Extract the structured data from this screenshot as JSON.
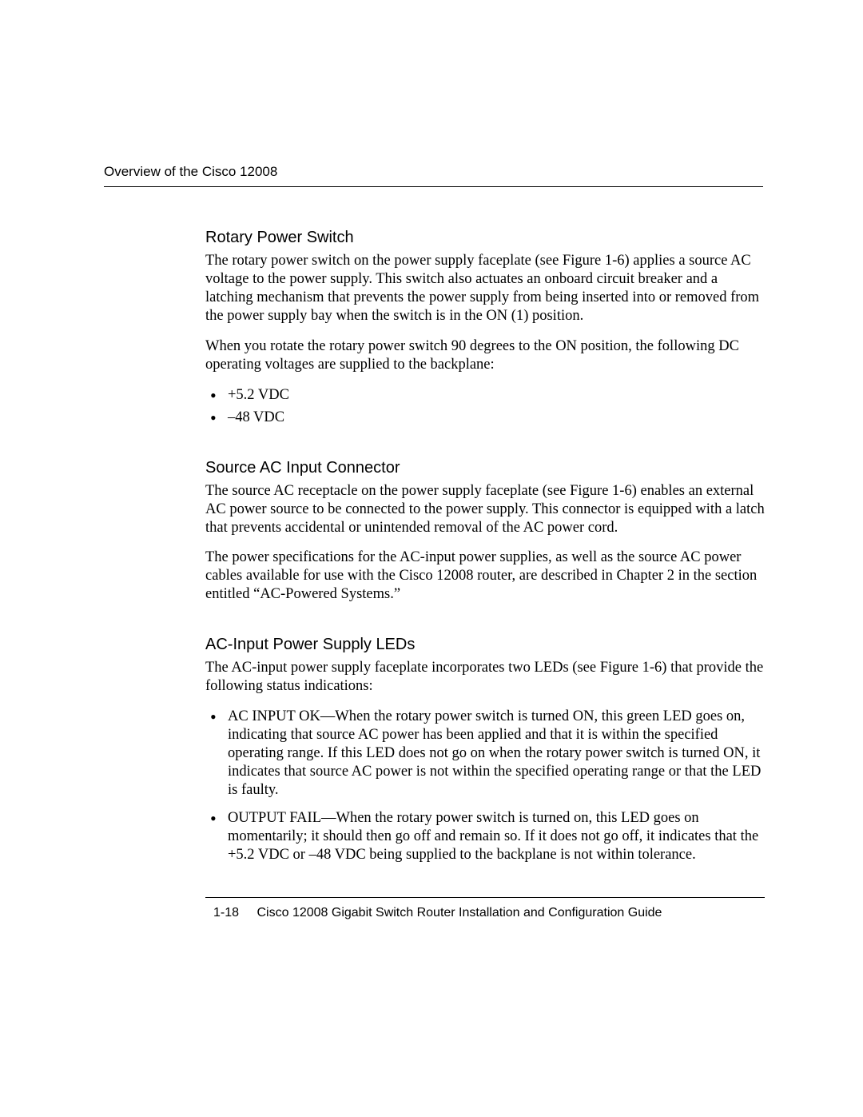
{
  "header": {
    "running_title": "Overview of the Cisco 12008"
  },
  "sections": [
    {
      "heading": "Rotary Power Switch",
      "paragraphs": [
        "The rotary power switch on the power supply faceplate (see Figure 1-6) applies a source AC voltage to the power supply. This switch also actuates an onboard circuit breaker and a latching mechanism that prevents the power supply from being inserted into or removed from the power supply bay when the switch is in the ON (1) position.",
        "When you rotate the rotary power switch 90 degrees to the ON position, the following DC operating voltages are supplied to the backplane:"
      ],
      "bullets": [
        "+5.2 VDC",
        "–48 VDC"
      ]
    },
    {
      "heading": "Source AC Input Connector",
      "paragraphs": [
        "The source AC receptacle on the power supply faceplate (see Figure 1-6) enables an external AC power source to be connected to the power supply. This connector is equipped with a latch that prevents accidental or unintended removal of the AC power cord.",
        "The power specifications for the AC-input power supplies, as well as the source AC power cables available for use with the Cisco 12008 router, are described in Chapter 2 in the section entitled “AC-Powered Systems.”"
      ],
      "bullets": []
    },
    {
      "heading": "AC-Input Power Supply LEDs",
      "paragraphs": [
        "The AC-input power supply faceplate incorporates two LEDs (see Figure 1-6) that provide the following status indications:"
      ],
      "bullets": [
        "AC INPUT OK—When the rotary power switch is turned ON, this green LED goes on, indicating that source AC power has been applied and that it is within the specified operating range. If this LED does not go on when the rotary power switch is turned ON, it indicates that source AC power is not within the specified operating range or that the LED is faulty.",
        "OUTPUT FAIL—When the rotary power switch is turned on, this LED goes on momentarily; it should then go off and remain so. If it does not go off, it indicates that the +5.2 VDC or –48 VDC being supplied to the backplane is not within tolerance."
      ]
    }
  ],
  "footer": {
    "page_number": "1-18",
    "doc_title": "Cisco 12008 Gigabit Switch Router Installation and Configuration Guide"
  }
}
